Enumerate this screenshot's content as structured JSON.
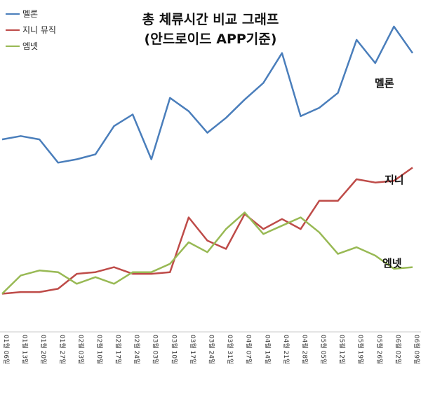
{
  "chart_data": {
    "type": "line",
    "title": "총 체류시간 비교 그래프",
    "subtitle": "(안드로이드 APP기준)",
    "xlabel": "",
    "ylabel": "",
    "legend_position": "top-left",
    "grid": false,
    "categories": [
      "01월 06일",
      "01월 13일",
      "01월 20일",
      "01월 27일",
      "02월 03일",
      "02월 10일",
      "02월 17일",
      "02월 24일",
      "03월 03일",
      "03월 10일",
      "03월 17일",
      "03월 24일",
      "03월 31일",
      "04월 07일",
      "04월 14일",
      "04월 21일",
      "04월 28일",
      "05월 05일",
      "05월 12일",
      "05월 19일",
      "05월 26일",
      "06월 02일",
      "06월 09일"
    ],
    "ylim": [
      0,
      100
    ],
    "series": [
      {
        "name": "멜론",
        "end_label": "멜론",
        "color": "#4a7ebb",
        "values": [
          58,
          59,
          58,
          51,
          52,
          53.5,
          62,
          65.5,
          52,
          70.5,
          66.5,
          60,
          64.5,
          70,
          75,
          84,
          65,
          67.5,
          72,
          88,
          81,
          92,
          84
        ]
      },
      {
        "name": "지니 뮤직",
        "end_label": "지니",
        "color": "#be4b48",
        "values": [
          11.5,
          12,
          12,
          13,
          17.5,
          18,
          19.5,
          17.5,
          17.5,
          18,
          34.5,
          27.5,
          25,
          35.5,
          31,
          34,
          31,
          39.5,
          39.5,
          46,
          45,
          45.5,
          49.5
        ]
      },
      {
        "name": "엠넷",
        "end_label": "엠넷",
        "color": "#98b954",
        "values": [
          11.5,
          17,
          18.5,
          18,
          14.5,
          16.5,
          14.5,
          18,
          18,
          20.5,
          27,
          24,
          31,
          36,
          29.5,
          32,
          34.5,
          30,
          23.5,
          25.5,
          23,
          19,
          19.5
        ]
      }
    ]
  }
}
